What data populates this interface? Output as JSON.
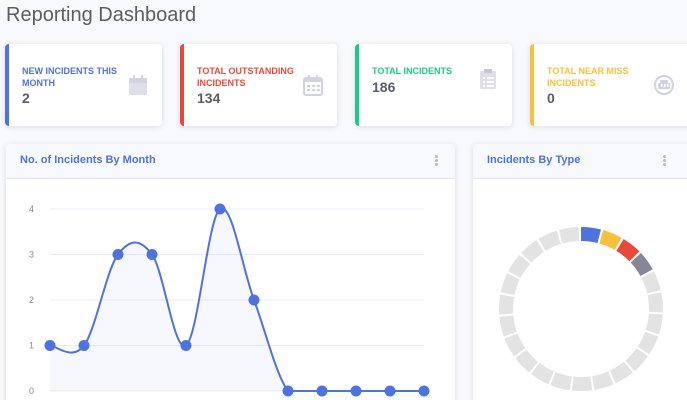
{
  "page": {
    "title": "Reporting Dashboard"
  },
  "cards": [
    {
      "label": "NEW INCIDENTS THIS MONTH",
      "value": "2",
      "color": "#4e73df",
      "icon": "calendar-icon"
    },
    {
      "label": "TOTAL OUTSTANDING INCIDENTS",
      "value": "134",
      "color": "#e74a3b",
      "icon": "calendar-grid-icon"
    },
    {
      "label": "TOTAL INCIDENTS",
      "value": "186",
      "color": "#1cc88a",
      "icon": "clipboard-list-icon"
    },
    {
      "label": "TOTAL NEAR MISS INCIDENTS",
      "value": "0",
      "color": "#f6c23e",
      "icon": "ambulance-icon"
    }
  ],
  "panels": {
    "incidents_by_month": {
      "title": "No. of Incidents By Month",
      "menu_icon": "ellipsis-vertical-icon"
    },
    "incidents_by_type": {
      "title": "Incidents By Type",
      "menu_icon": "ellipsis-vertical-icon"
    }
  },
  "chart_data": [
    {
      "type": "area",
      "title": "No. of Incidents By Month",
      "y_ticks": [
        "0",
        "1",
        "2",
        "3",
        "4"
      ],
      "ylim": [
        0,
        4
      ],
      "values": [
        1,
        1,
        3,
        3,
        1,
        4,
        2,
        0,
        0,
        0,
        0,
        0
      ],
      "color": "#4e73df",
      "grid": true
    },
    {
      "type": "pie",
      "title": "Incidents By Type",
      "colored_segments": [
        "#4e73df",
        "#f6c23e",
        "#e74a3b",
        "#858796"
      ],
      "inactive_color": "#e3e3e3",
      "segment_count": 23
    }
  ]
}
